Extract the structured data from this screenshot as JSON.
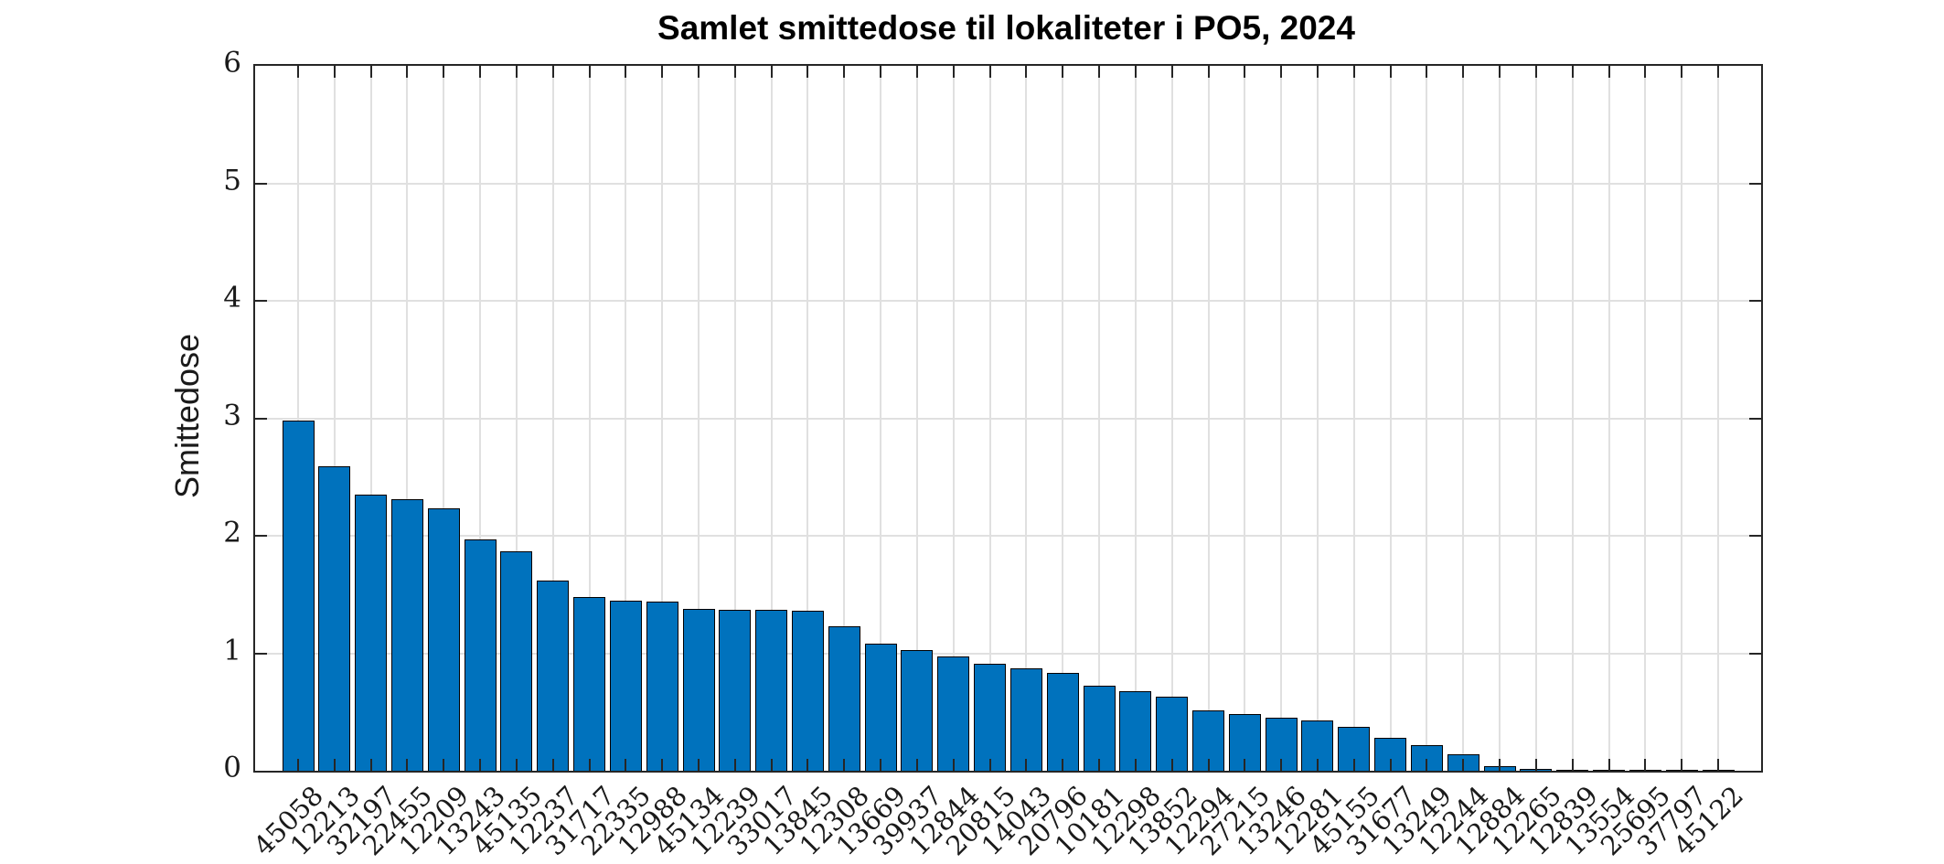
{
  "chart_data": {
    "type": "bar",
    "title": "Samlet smittedose til lokaliteter i PO5, 2024",
    "xlabel": "",
    "ylabel": "Smittedose",
    "categories": [
      "45058",
      "12213",
      "32197",
      "22455",
      "12209",
      "13243",
      "45135",
      "12237",
      "31717",
      "22335",
      "12988",
      "45134",
      "12239",
      "33017",
      "13845",
      "12308",
      "13669",
      "39937",
      "12844",
      "20815",
      "14043",
      "20796",
      "10181",
      "12298",
      "13852",
      "12294",
      "27215",
      "13246",
      "12281",
      "45155",
      "31677",
      "13249",
      "12244",
      "12884",
      "12265",
      "12839",
      "13554",
      "25695",
      "37797",
      "45122"
    ],
    "values": [
      2.98,
      2.59,
      2.35,
      2.31,
      2.23,
      1.97,
      1.87,
      1.62,
      1.48,
      1.45,
      1.44,
      1.38,
      1.37,
      1.37,
      1.36,
      1.23,
      1.08,
      1.03,
      0.97,
      0.91,
      0.87,
      0.83,
      0.72,
      0.68,
      0.63,
      0.51,
      0.48,
      0.45,
      0.43,
      0.37,
      0.28,
      0.22,
      0.14,
      0.04,
      0.015,
      0.01,
      0.008,
      0.006,
      0.004,
      0.002
    ],
    "ylim": [
      0,
      6
    ],
    "yticks": [
      0,
      1,
      2,
      3,
      4,
      5,
      6
    ],
    "x_tick_rotation_deg": 45,
    "grid": "on",
    "legend": "none",
    "colors": {
      "bar_fill": "#0072BD",
      "bar_edge": "#000000",
      "axis": "#262626",
      "grid": "#e0e0e0",
      "background": "#ffffff",
      "text": "#1a1a1a"
    }
  }
}
